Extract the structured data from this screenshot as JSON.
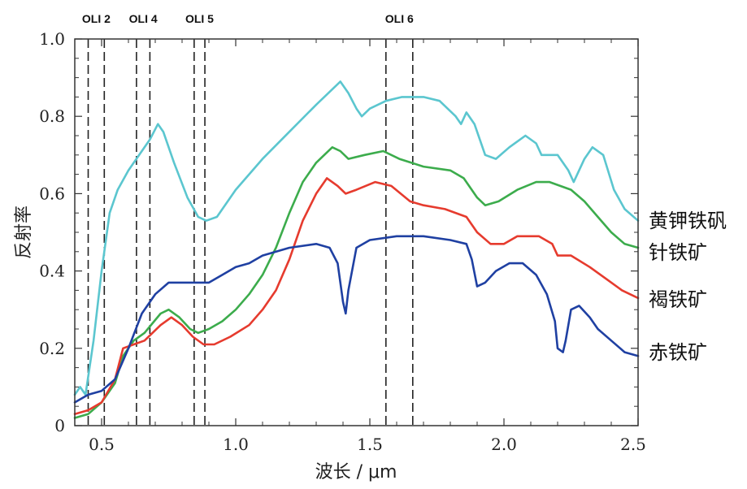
{
  "chart_data": {
    "type": "line",
    "xlabel": "波长 / μm",
    "ylabel": "反射率",
    "xlim": [
      0.4,
      2.5
    ],
    "ylim": [
      0,
      1.0
    ],
    "x_ticks": [
      0.5,
      1.0,
      1.5,
      2.0,
      2.5
    ],
    "x_tick_labels": [
      "0.5",
      "1.0",
      "1.5",
      "2.0",
      "2.5"
    ],
    "y_ticks": [
      0,
      0.2,
      0.4,
      0.6,
      0.8,
      1.0
    ],
    "y_tick_labels": [
      "0",
      "0.2",
      "0.4",
      "0.6",
      "0.8",
      "1.0"
    ],
    "grid": false,
    "bands": [
      {
        "name": "OLI 2",
        "lines": [
          0.45,
          0.51
        ]
      },
      {
        "name": "OLI 4",
        "lines": [
          0.63,
          0.68
        ]
      },
      {
        "name": "OLI 5",
        "lines": [
          0.845,
          0.885
        ]
      },
      {
        "name": "OLI 6",
        "lines": [
          1.56,
          1.66
        ]
      }
    ],
    "series": [
      {
        "name": "黄钾铁矾",
        "color": "#5bc6cf",
        "points": [
          [
            0.4,
            0.08
          ],
          [
            0.42,
            0.1
          ],
          [
            0.44,
            0.08
          ],
          [
            0.47,
            0.22
          ],
          [
            0.5,
            0.4
          ],
          [
            0.53,
            0.55
          ],
          [
            0.56,
            0.61
          ],
          [
            0.6,
            0.66
          ],
          [
            0.64,
            0.7
          ],
          [
            0.68,
            0.74
          ],
          [
            0.71,
            0.78
          ],
          [
            0.73,
            0.76
          ],
          [
            0.77,
            0.68
          ],
          [
            0.82,
            0.59
          ],
          [
            0.86,
            0.54
          ],
          [
            0.89,
            0.53
          ],
          [
            0.93,
            0.54
          ],
          [
            1.0,
            0.61
          ],
          [
            1.1,
            0.69
          ],
          [
            1.2,
            0.76
          ],
          [
            1.3,
            0.83
          ],
          [
            1.36,
            0.87
          ],
          [
            1.39,
            0.89
          ],
          [
            1.42,
            0.86
          ],
          [
            1.45,
            0.82
          ],
          [
            1.47,
            0.8
          ],
          [
            1.5,
            0.82
          ],
          [
            1.56,
            0.84
          ],
          [
            1.62,
            0.85
          ],
          [
            1.7,
            0.85
          ],
          [
            1.76,
            0.84
          ],
          [
            1.82,
            0.8
          ],
          [
            1.84,
            0.78
          ],
          [
            1.86,
            0.81
          ],
          [
            1.89,
            0.78
          ],
          [
            1.93,
            0.7
          ],
          [
            1.97,
            0.69
          ],
          [
            2.02,
            0.72
          ],
          [
            2.08,
            0.75
          ],
          [
            2.12,
            0.73
          ],
          [
            2.14,
            0.7
          ],
          [
            2.17,
            0.7
          ],
          [
            2.2,
            0.7
          ],
          [
            2.24,
            0.66
          ],
          [
            2.26,
            0.63
          ],
          [
            2.3,
            0.69
          ],
          [
            2.33,
            0.72
          ],
          [
            2.37,
            0.7
          ],
          [
            2.41,
            0.61
          ],
          [
            2.45,
            0.56
          ],
          [
            2.5,
            0.53
          ]
        ]
      },
      {
        "name": "针铁矿",
        "color": "#3cac4c",
        "points": [
          [
            0.4,
            0.02
          ],
          [
            0.45,
            0.03
          ],
          [
            0.5,
            0.06
          ],
          [
            0.55,
            0.11
          ],
          [
            0.58,
            0.18
          ],
          [
            0.62,
            0.22
          ],
          [
            0.66,
            0.24
          ],
          [
            0.72,
            0.29
          ],
          [
            0.75,
            0.3
          ],
          [
            0.79,
            0.28
          ],
          [
            0.83,
            0.25
          ],
          [
            0.86,
            0.24
          ],
          [
            0.9,
            0.25
          ],
          [
            0.95,
            0.27
          ],
          [
            1.0,
            0.3
          ],
          [
            1.05,
            0.34
          ],
          [
            1.1,
            0.39
          ],
          [
            1.15,
            0.46
          ],
          [
            1.2,
            0.55
          ],
          [
            1.25,
            0.63
          ],
          [
            1.3,
            0.68
          ],
          [
            1.36,
            0.72
          ],
          [
            1.39,
            0.71
          ],
          [
            1.42,
            0.69
          ],
          [
            1.48,
            0.7
          ],
          [
            1.55,
            0.71
          ],
          [
            1.61,
            0.69
          ],
          [
            1.7,
            0.67
          ],
          [
            1.8,
            0.66
          ],
          [
            1.85,
            0.64
          ],
          [
            1.9,
            0.59
          ],
          [
            1.93,
            0.57
          ],
          [
            1.98,
            0.58
          ],
          [
            2.05,
            0.61
          ],
          [
            2.12,
            0.63
          ],
          [
            2.17,
            0.63
          ],
          [
            2.25,
            0.61
          ],
          [
            2.3,
            0.58
          ],
          [
            2.35,
            0.54
          ],
          [
            2.4,
            0.5
          ],
          [
            2.45,
            0.47
          ],
          [
            2.5,
            0.46
          ]
        ]
      },
      {
        "name": "褐铁矿",
        "color": "#e63b2e",
        "points": [
          [
            0.4,
            0.03
          ],
          [
            0.45,
            0.04
          ],
          [
            0.5,
            0.06
          ],
          [
            0.55,
            0.12
          ],
          [
            0.58,
            0.2
          ],
          [
            0.62,
            0.21
          ],
          [
            0.66,
            0.22
          ],
          [
            0.72,
            0.26
          ],
          [
            0.76,
            0.28
          ],
          [
            0.8,
            0.26
          ],
          [
            0.84,
            0.23
          ],
          [
            0.88,
            0.21
          ],
          [
            0.92,
            0.21
          ],
          [
            0.98,
            0.23
          ],
          [
            1.05,
            0.26
          ],
          [
            1.1,
            0.3
          ],
          [
            1.15,
            0.35
          ],
          [
            1.2,
            0.43
          ],
          [
            1.25,
            0.53
          ],
          [
            1.3,
            0.6
          ],
          [
            1.34,
            0.64
          ],
          [
            1.38,
            0.62
          ],
          [
            1.41,
            0.6
          ],
          [
            1.45,
            0.61
          ],
          [
            1.52,
            0.63
          ],
          [
            1.58,
            0.62
          ],
          [
            1.65,
            0.58
          ],
          [
            1.7,
            0.57
          ],
          [
            1.78,
            0.56
          ],
          [
            1.86,
            0.54
          ],
          [
            1.9,
            0.5
          ],
          [
            1.95,
            0.47
          ],
          [
            2.0,
            0.47
          ],
          [
            2.05,
            0.49
          ],
          [
            2.13,
            0.49
          ],
          [
            2.18,
            0.47
          ],
          [
            2.2,
            0.44
          ],
          [
            2.25,
            0.44
          ],
          [
            2.32,
            0.41
          ],
          [
            2.38,
            0.38
          ],
          [
            2.44,
            0.35
          ],
          [
            2.5,
            0.33
          ]
        ]
      },
      {
        "name": "赤铁矿",
        "color": "#1f40a2",
        "points": [
          [
            0.4,
            0.06
          ],
          [
            0.45,
            0.08
          ],
          [
            0.5,
            0.09
          ],
          [
            0.55,
            0.12
          ],
          [
            0.6,
            0.2
          ],
          [
            0.65,
            0.29
          ],
          [
            0.7,
            0.34
          ],
          [
            0.75,
            0.37
          ],
          [
            0.8,
            0.37
          ],
          [
            0.85,
            0.37
          ],
          [
            0.9,
            0.37
          ],
          [
            0.95,
            0.39
          ],
          [
            1.0,
            0.41
          ],
          [
            1.05,
            0.42
          ],
          [
            1.1,
            0.44
          ],
          [
            1.2,
            0.46
          ],
          [
            1.3,
            0.47
          ],
          [
            1.35,
            0.46
          ],
          [
            1.38,
            0.42
          ],
          [
            1.4,
            0.32
          ],
          [
            1.41,
            0.29
          ],
          [
            1.42,
            0.35
          ],
          [
            1.45,
            0.46
          ],
          [
            1.5,
            0.48
          ],
          [
            1.6,
            0.49
          ],
          [
            1.7,
            0.49
          ],
          [
            1.8,
            0.48
          ],
          [
            1.86,
            0.47
          ],
          [
            1.88,
            0.43
          ],
          [
            1.9,
            0.36
          ],
          [
            1.93,
            0.37
          ],
          [
            1.97,
            0.4
          ],
          [
            2.02,
            0.42
          ],
          [
            2.07,
            0.42
          ],
          [
            2.12,
            0.39
          ],
          [
            2.16,
            0.34
          ],
          [
            2.19,
            0.27
          ],
          [
            2.2,
            0.2
          ],
          [
            2.22,
            0.19
          ],
          [
            2.23,
            0.22
          ],
          [
            2.25,
            0.3
          ],
          [
            2.28,
            0.31
          ],
          [
            2.32,
            0.28
          ],
          [
            2.35,
            0.25
          ],
          [
            2.4,
            0.22
          ],
          [
            2.45,
            0.19
          ],
          [
            2.5,
            0.18
          ]
        ]
      }
    ],
    "series_labels": [
      "黄钾铁矾",
      "针铁矿",
      "褐铁矿",
      "赤铁矿"
    ]
  }
}
